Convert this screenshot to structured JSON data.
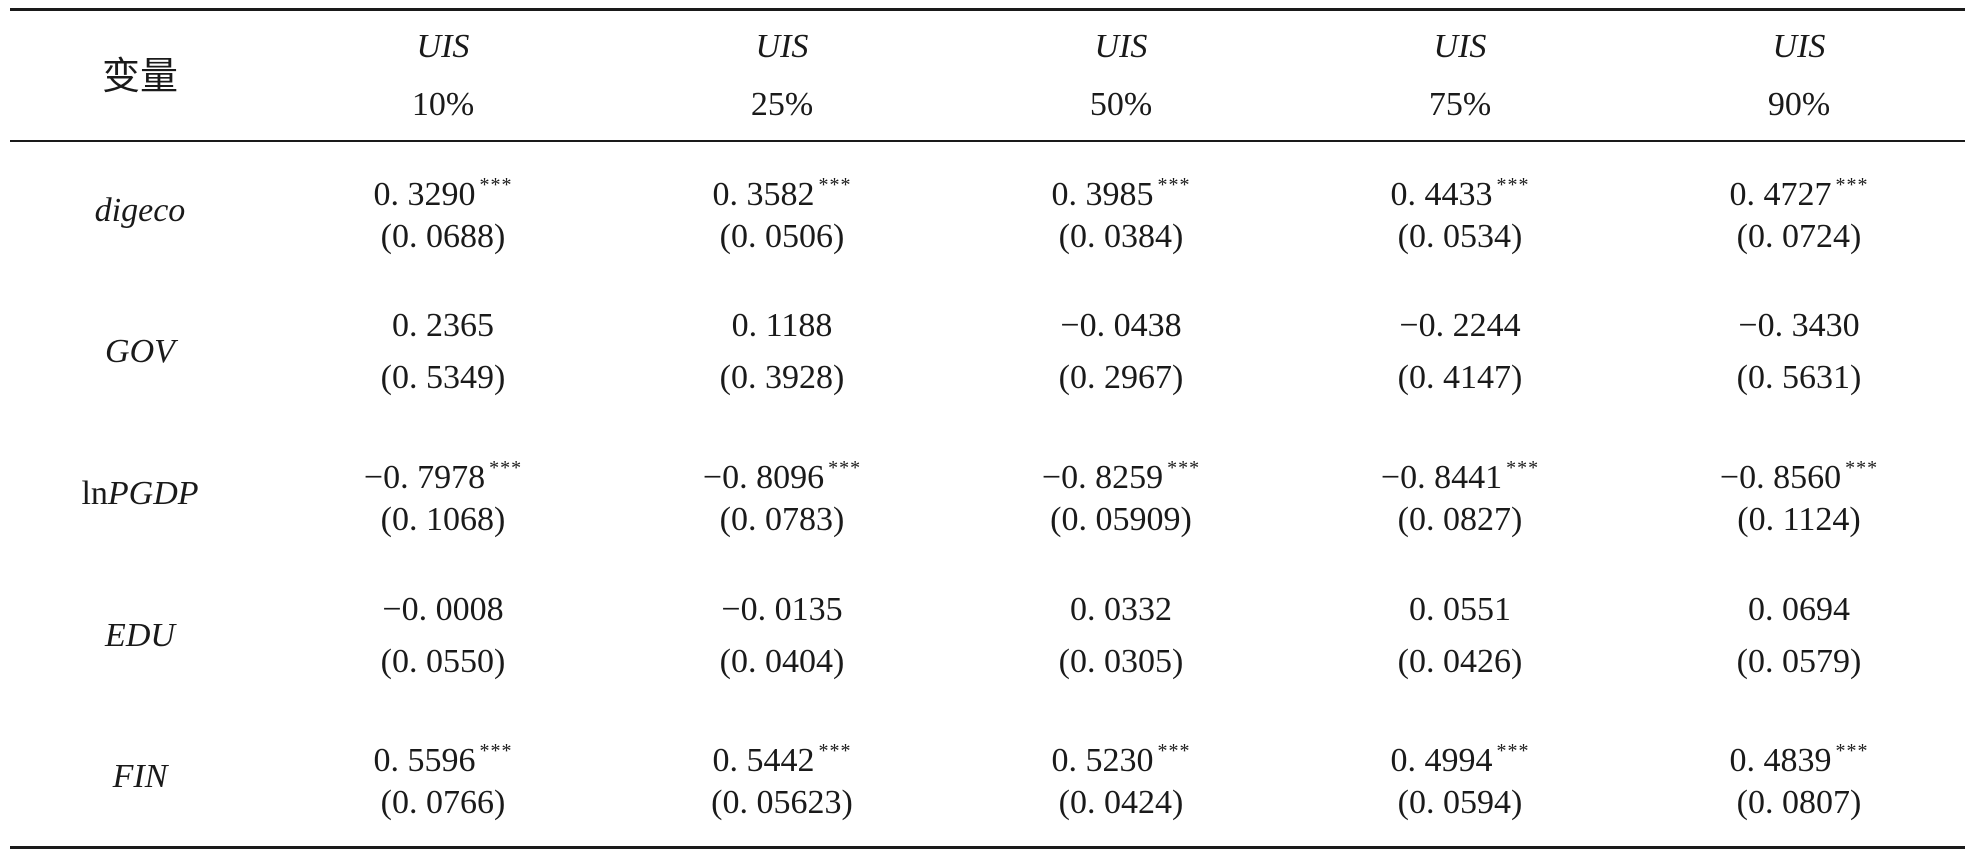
{
  "header": {
    "variable_label": "变量",
    "columns": [
      {
        "dep": "UIS",
        "quantile": "10%"
      },
      {
        "dep": "UIS",
        "quantile": "25%"
      },
      {
        "dep": "UIS",
        "quantile": "50%"
      },
      {
        "dep": "UIS",
        "quantile": "75%"
      },
      {
        "dep": "UIS",
        "quantile": "90%"
      }
    ]
  },
  "rows": [
    {
      "prefix": "",
      "name": "digeco",
      "cells": [
        {
          "coef": "0. 3290",
          "stars": "***",
          "se": "(0. 0688)"
        },
        {
          "coef": "0. 3582",
          "stars": "***",
          "se": "(0. 0506)"
        },
        {
          "coef": "0. 3985",
          "stars": "***",
          "se": "(0. 0384)"
        },
        {
          "coef": "0. 4433",
          "stars": "***",
          "se": "(0. 0534)"
        },
        {
          "coef": "0. 4727",
          "stars": "***",
          "se": "(0. 0724)"
        }
      ]
    },
    {
      "prefix": "",
      "name": "GOV",
      "cells": [
        {
          "coef": "0. 2365",
          "stars": "",
          "se": "(0. 5349)"
        },
        {
          "coef": "0. 1188",
          "stars": "",
          "se": "(0. 3928)"
        },
        {
          "coef": "−0. 0438",
          "stars": "",
          "se": "(0. 2967)"
        },
        {
          "coef": "−0. 2244",
          "stars": "",
          "se": "(0. 4147)"
        },
        {
          "coef": "−0. 3430",
          "stars": "",
          "se": "(0. 5631)"
        }
      ]
    },
    {
      "prefix": "ln",
      "name": "PGDP",
      "cells": [
        {
          "coef": "−0. 7978",
          "stars": "***",
          "se": "(0. 1068)"
        },
        {
          "coef": "−0. 8096",
          "stars": "***",
          "se": "(0. 0783)"
        },
        {
          "coef": "−0. 8259",
          "stars": "***",
          "se": "(0. 05909)"
        },
        {
          "coef": "−0. 8441",
          "stars": "***",
          "se": "(0. 0827)"
        },
        {
          "coef": "−0. 8560",
          "stars": "***",
          "se": "(0. 1124)"
        }
      ]
    },
    {
      "prefix": "",
      "name": "EDU",
      "cells": [
        {
          "coef": "−0. 0008",
          "stars": "",
          "se": "(0. 0550)"
        },
        {
          "coef": "−0. 0135",
          "stars": "",
          "se": "(0. 0404)"
        },
        {
          "coef": "0. 0332",
          "stars": "",
          "se": "(0. 0305)"
        },
        {
          "coef": "0. 0551",
          "stars": "",
          "se": "(0. 0426)"
        },
        {
          "coef": "0. 0694",
          "stars": "",
          "se": "(0. 0579)"
        }
      ]
    },
    {
      "prefix": "",
      "name": "FIN",
      "cells": [
        {
          "coef": "0. 5596",
          "stars": "***",
          "se": "(0. 0766)"
        },
        {
          "coef": "0. 5442",
          "stars": "***",
          "se": "(0. 05623)"
        },
        {
          "coef": "0. 5230",
          "stars": "***",
          "se": "(0. 0424)"
        },
        {
          "coef": "0. 4994",
          "stars": "***",
          "se": "(0. 0594)"
        },
        {
          "coef": "0. 4839",
          "stars": "***",
          "se": "(0. 0807)"
        }
      ]
    }
  ]
}
